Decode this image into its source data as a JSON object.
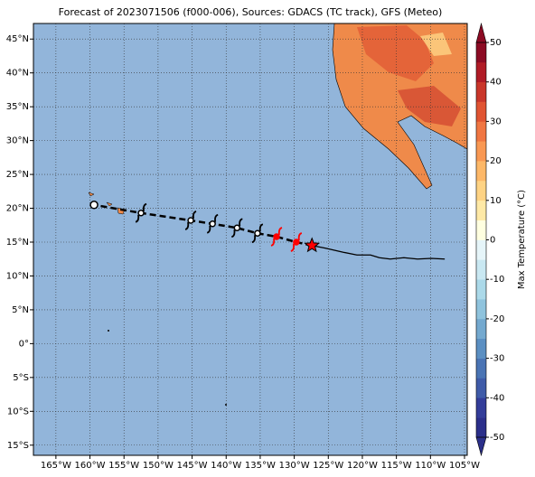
{
  "chart_data": {
    "type": "map",
    "title": "Forecast of 2023071506 (f000-006), Sources: GDACS (TC track), GFS (Meteo)",
    "xlim": [
      -168.3,
      -104.6
    ],
    "ylim": [
      -16.5,
      47.3
    ],
    "xticks": [
      {
        "value": -165,
        "label": "165°W"
      },
      {
        "value": -160,
        "label": "160°W"
      },
      {
        "value": -155,
        "label": "155°W"
      },
      {
        "value": -150,
        "label": "150°W"
      },
      {
        "value": -145,
        "label": "145°W"
      },
      {
        "value": -140,
        "label": "140°W"
      },
      {
        "value": -135,
        "label": "135°W"
      },
      {
        "value": -130,
        "label": "130°W"
      },
      {
        "value": -125,
        "label": "125°W"
      },
      {
        "value": -120,
        "label": "120°W"
      },
      {
        "value": -115,
        "label": "115°W"
      },
      {
        "value": -110,
        "label": "110°W"
      },
      {
        "value": -105,
        "label": "105°W"
      }
    ],
    "yticks": [
      {
        "value": 45,
        "label": "45°N"
      },
      {
        "value": 40,
        "label": "40°N"
      },
      {
        "value": 35,
        "label": "35°N"
      },
      {
        "value": 30,
        "label": "30°N"
      },
      {
        "value": 25,
        "label": "25°N"
      },
      {
        "value": 20,
        "label": "20°N"
      },
      {
        "value": 15,
        "label": "15°N"
      },
      {
        "value": 10,
        "label": "10°N"
      },
      {
        "value": 5,
        "label": "5°N"
      },
      {
        "value": 0,
        "label": "0°"
      },
      {
        "value": -5,
        "label": "5°S"
      },
      {
        "value": -10,
        "label": "10°S"
      },
      {
        "value": -15,
        "label": "15°S"
      }
    ],
    "grid": true,
    "series": [
      {
        "name": "Past track",
        "color": "#000000",
        "x": [
          -127.4,
          -125.4,
          -122.8,
          -120.8,
          -118.8,
          -117.5,
          -115.9,
          -113.9,
          -111.9,
          -109.9,
          -107.9
        ],
        "y": [
          14.5,
          14.1,
          13.5,
          13.1,
          13.1,
          12.7,
          12.5,
          12.7,
          12.5,
          12.6,
          12.5
        ]
      },
      {
        "name": "Current position",
        "color": "#ff0000",
        "x": [
          -127.4
        ],
        "y": [
          14.5
        ]
      },
      {
        "name": "Hurricane forecast",
        "color": "#ff0000",
        "x": [
          -129.7,
          -132.6
        ],
        "y": [
          15.0,
          15.8
        ]
      },
      {
        "name": "Storm forecast",
        "color": "#000000",
        "x": [
          -135.4,
          -138.4,
          -142.0,
          -145.2,
          -152.5
        ],
        "y": [
          16.3,
          17.1,
          17.7,
          18.2,
          19.3
        ]
      },
      {
        "name": "Final position",
        "color": "#000000",
        "x": [
          -159.4
        ],
        "y": [
          20.5
        ]
      }
    ],
    "colorbar": {
      "label": "Max Temperature (°C)",
      "lim": [
        -50,
        50
      ],
      "ticks": [
        50,
        40,
        30,
        20,
        10,
        0,
        -10,
        -20,
        -30,
        -40,
        -50
      ],
      "colors": [
        "#2b2f8a",
        "#333d99",
        "#3f5ba8",
        "#4a74b4",
        "#5b8fc2",
        "#74a9cf",
        "#8fc3dd",
        "#abd9e9",
        "#c9e8f2",
        "#e6f5f9",
        "#ffffe0",
        "#fee9a6",
        "#fed384",
        "#fdb868",
        "#f99853",
        "#f07642",
        "#e05432",
        "#c9362a",
        "#b01b26",
        "#8c0b24"
      ]
    }
  }
}
